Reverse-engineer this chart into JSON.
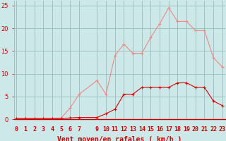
{
  "x": [
    0,
    1,
    2,
    3,
    4,
    5,
    6,
    7,
    9,
    10,
    11,
    12,
    13,
    14,
    15,
    16,
    17,
    18,
    19,
    20,
    21,
    22,
    23
  ],
  "y_rafales": [
    0.2,
    0.2,
    0.2,
    0.2,
    0.2,
    0.3,
    2.5,
    5.5,
    8.5,
    5.5,
    14.0,
    16.5,
    14.5,
    14.5,
    18.0,
    21.0,
    24.5,
    21.5,
    21.5,
    19.5,
    19.5,
    13.5,
    11.5
  ],
  "y_moyen": [
    0.1,
    0.1,
    0.1,
    0.1,
    0.1,
    0.1,
    0.3,
    0.4,
    0.4,
    1.2,
    2.2,
    5.5,
    5.5,
    7.0,
    7.0,
    7.0,
    7.0,
    8.0,
    8.0,
    7.0,
    7.0,
    4.0,
    3.0
  ],
  "background_color": "#cce8e8",
  "grid_color": "#99bbbb",
  "line_color_rafales": "#f08888",
  "line_color_moyen": "#dd0000",
  "arrow_color": "#cc0000",
  "xlabel": "Vent moyen/en rafales ( km/h )",
  "xlim": [
    -0.3,
    23.3
  ],
  "ylim": [
    0,
    26
  ],
  "yticks": [
    0,
    5,
    10,
    15,
    20,
    25
  ],
  "xticks": [
    0,
    1,
    2,
    3,
    4,
    5,
    6,
    7,
    9,
    10,
    11,
    12,
    13,
    14,
    15,
    16,
    17,
    18,
    19,
    20,
    21,
    22,
    23
  ],
  "xlabel_fontsize": 7,
  "tick_fontsize": 6,
  "marker_size": 3
}
